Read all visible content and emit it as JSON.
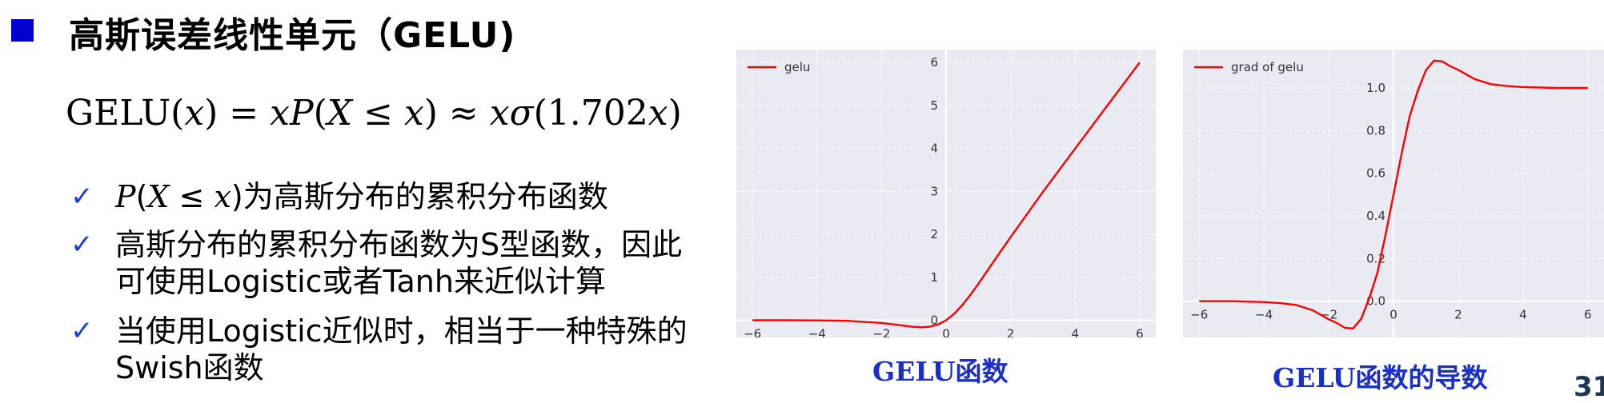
{
  "title": "高斯误差线性单元（GELU)",
  "formula": {
    "p1": "GELU(",
    "p2": "x",
    "p3": ") = ",
    "p4": "xP",
    "p5": "(",
    "p6": "X",
    "p7": " ≤ ",
    "p8": "x",
    "p9": ") ≈ ",
    "p10": "xσ",
    "p11": "(1.702",
    "p12": "x",
    "p13": ")"
  },
  "bullets": [
    {
      "math_a": "P",
      "math_b": "(",
      "math_c": "X",
      "math_d": " ≤ ",
      "math_e": "x",
      "math_f": ")",
      "text": "为高斯分布的累积分布函数"
    },
    {
      "line1": "高斯分布的累积分布函数为S型函数，因此",
      "line2": "可使用Logistic或者Tanh来近似计算"
    },
    {
      "line1": "当使用Logistic近似时，相当于一种特殊的",
      "line2": "Swish函数"
    }
  ],
  "check_glyph": "✓",
  "captions": {
    "left": "GELU函数",
    "right": "GELU函数的导数"
  },
  "page_number": "31",
  "colors": {
    "accent": "#0000d0",
    "curve": "#ff0000",
    "plot_bg": "#eaeaf2",
    "caption": "#1a2fc8"
  },
  "chart_data": [
    {
      "type": "line",
      "title": "",
      "xlabel": "",
      "ylabel": "",
      "xlim": [
        -6.5,
        6.5
      ],
      "ylim": [
        -0.4,
        6.3
      ],
      "xticks": [
        "−6",
        "−4",
        "−2",
        "0",
        "2",
        "4",
        "6"
      ],
      "yticks": [
        "0",
        "1",
        "2",
        "3",
        "4",
        "5",
        "6"
      ],
      "grid": true,
      "legend": "top-left",
      "series": [
        {
          "name": "gelu",
          "x": [
            -6,
            -5,
            -4,
            -3,
            -2,
            -1.5,
            -1,
            -0.75,
            -0.5,
            -0.25,
            0,
            0.25,
            0.5,
            0.75,
            1,
            1.5,
            2,
            3,
            4,
            5,
            6
          ],
          "y": [
            0,
            0,
            -0.004,
            -0.014,
            -0.064,
            -0.108,
            -0.154,
            -0.163,
            -0.149,
            -0.099,
            0,
            0.151,
            0.351,
            0.587,
            0.846,
            1.394,
            1.936,
            2.986,
            3.996,
            4.999,
            6
          ]
        }
      ]
    },
    {
      "type": "line",
      "title": "",
      "xlabel": "",
      "ylabel": "",
      "xlim": [
        -6.5,
        6.5
      ],
      "ylim": [
        -0.17,
        1.18
      ],
      "xticks": [
        "−6",
        "−4",
        "−2",
        "0",
        "2",
        "4",
        "6"
      ],
      "yticks": [
        "0.0",
        "0.2",
        "0.4",
        "0.6",
        "0.8",
        "1.0"
      ],
      "grid": true,
      "legend": "top-left",
      "series": [
        {
          "name": "grad of gelu",
          "x": [
            -6,
            -5,
            -4,
            -3.5,
            -3,
            -2.5,
            -2,
            -1.75,
            -1.5,
            -1.25,
            -1,
            -0.75,
            -0.5,
            -0.25,
            0,
            0.25,
            0.5,
            0.75,
            1,
            1.25,
            1.5,
            1.75,
            2,
            2.5,
            3,
            3.5,
            4,
            5,
            6
          ],
          "y": [
            0,
            0,
            -0.004,
            -0.009,
            -0.018,
            -0.042,
            -0.085,
            -0.102,
            -0.125,
            -0.128,
            -0.083,
            0.013,
            0.132,
            0.308,
            0.5,
            0.692,
            0.868,
            0.987,
            1.083,
            1.128,
            1.125,
            1.102,
            1.085,
            1.042,
            1.018,
            1.009,
            1.004,
            1,
            1
          ]
        }
      ]
    }
  ]
}
